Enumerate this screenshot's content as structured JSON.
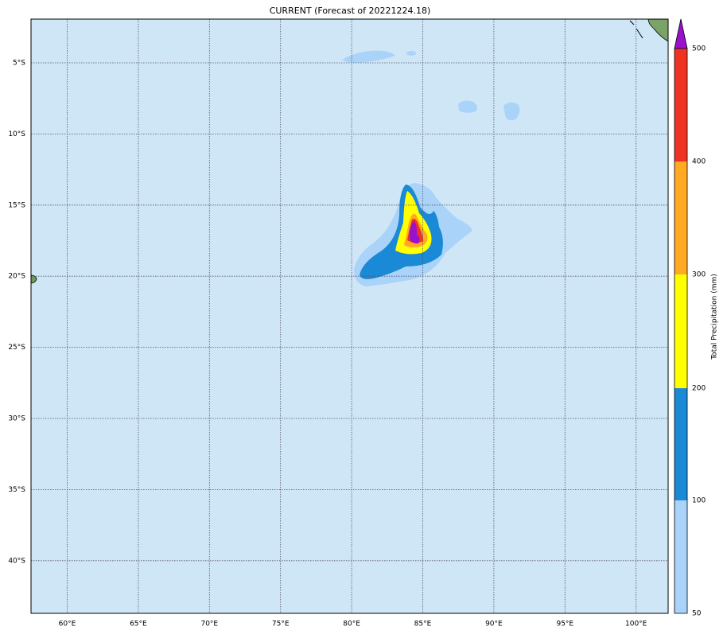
{
  "title": "CURRENT (Forecast of 20221224.18)",
  "lon_labels": [
    "60°E",
    "65°E",
    "70°E",
    "75°E",
    "80°E",
    "85°E",
    "90°E",
    "95°E",
    "100°E"
  ],
  "lat_labels": [
    "5°S",
    "10°S",
    "15°S",
    "20°S",
    "25°S",
    "30°S",
    "35°S",
    "40°S"
  ],
  "colorbar": {
    "label": "Total Precipitation (mm)",
    "levels": [
      50,
      100,
      200,
      300,
      400,
      500
    ]
  }
}
